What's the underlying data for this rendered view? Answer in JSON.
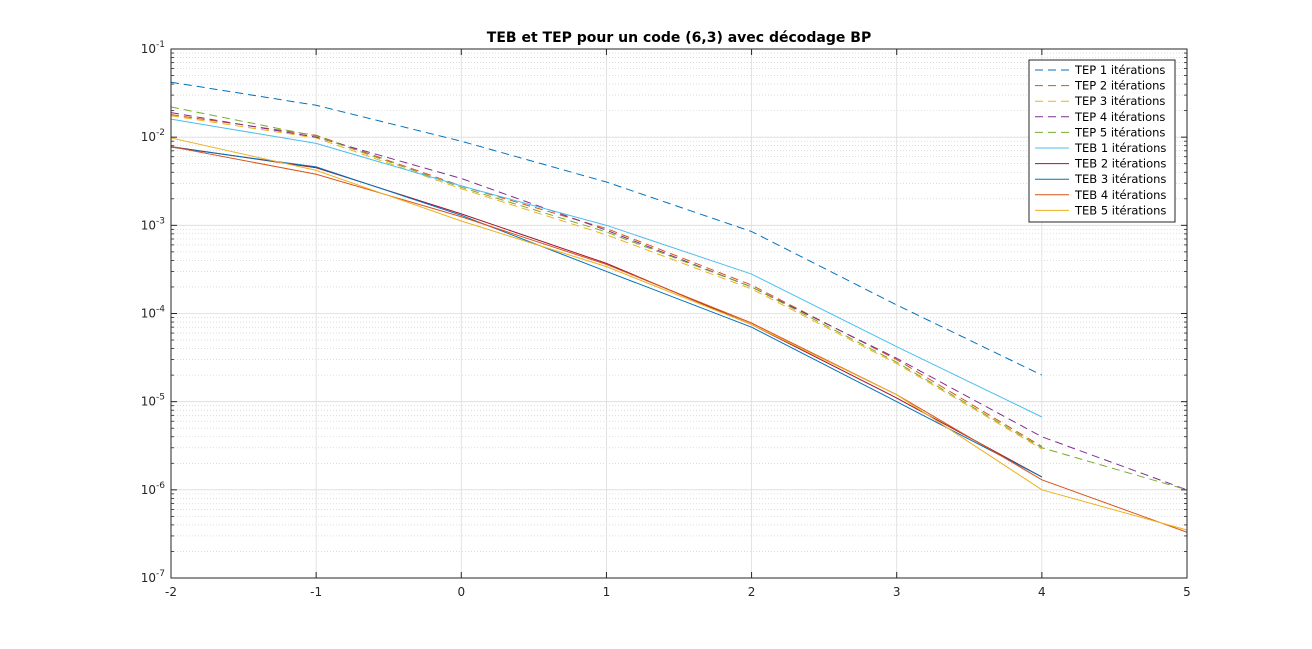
{
  "chart_data": {
    "type": "line",
    "title": "TEB et TEP pour un code (6,3) avec décodage BP",
    "xlabel": "",
    "ylabel": "",
    "xlim": [
      -2,
      5
    ],
    "ylim": [
      1e-07,
      0.1
    ],
    "yscale": "log",
    "grid": true,
    "minor_grid": true,
    "legend_position": "top-right",
    "x_ticks": [
      -2,
      -1,
      0,
      1,
      2,
      3,
      4,
      5
    ],
    "y_tick_labels": [
      {
        "base": "10",
        "exp": "-1"
      },
      {
        "base": "10",
        "exp": "-2"
      },
      {
        "base": "10",
        "exp": "-3"
      },
      {
        "base": "10",
        "exp": "-4"
      },
      {
        "base": "10",
        "exp": "-5"
      },
      {
        "base": "10",
        "exp": "-6"
      },
      {
        "base": "10",
        "exp": "-7"
      }
    ],
    "series": [
      {
        "name": "TEP 1 itérations",
        "color": "#0072BD",
        "dash": true,
        "x": [
          -2,
          -1,
          0,
          1,
          2,
          3,
          4
        ],
        "y": [
          0.042,
          0.023,
          0.009,
          0.0031,
          0.00085,
          0.000125,
          2e-05
        ]
      },
      {
        "name": "TEP 2 itérations",
        "color": "#D95319",
        "dash": true,
        "x": [
          -2,
          -1,
          0,
          1,
          2,
          3,
          4
        ],
        "y": [
          0.018,
          0.0105,
          0.0028,
          0.00092,
          0.00021,
          3e-05,
          3.1e-06
        ]
      },
      {
        "name": "TEP 3 itérations",
        "color": "#EDB120",
        "dash": true,
        "x": [
          -2,
          -1,
          0,
          1,
          2,
          3,
          4
        ],
        "y": [
          0.0175,
          0.0098,
          0.0026,
          0.00078,
          0.00019,
          2.7e-05,
          2.9e-06
        ]
      },
      {
        "name": "TEP 4 itérations",
        "color": "#7E2F8E",
        "dash": true,
        "x": [
          -2,
          -1,
          0,
          1,
          2,
          3,
          4,
          5
        ],
        "y": [
          0.019,
          0.01,
          0.0034,
          0.00088,
          0.0002,
          3.1e-05,
          4e-06,
          1e-06
        ]
      },
      {
        "name": "TEP 5 itérations",
        "color": "#77AC30",
        "dash": true,
        "x": [
          -2,
          -1,
          0,
          1,
          2,
          3,
          4,
          5
        ],
        "y": [
          0.022,
          0.0103,
          0.0027,
          0.00084,
          0.0002,
          2.8e-05,
          3e-06,
          1e-06
        ]
      },
      {
        "name": "TEB 1 itérations",
        "color": "#4DBEEE",
        "dash": false,
        "x": [
          -2,
          -1,
          0,
          1,
          2,
          3,
          4
        ],
        "y": [
          0.016,
          0.0085,
          0.0028,
          0.001,
          0.00028,
          4.2e-05,
          6.7e-06
        ]
      },
      {
        "name": "TEB 2 itérations",
        "color": "#A2142F",
        "dash": false,
        "x": [
          -2,
          -1,
          0,
          1,
          2,
          3,
          4
        ],
        "y": [
          0.0078,
          0.0045,
          0.00135,
          0.00037,
          7.5e-05,
          1.1e-05,
          1.4e-06
        ]
      },
      {
        "name": "TEB 3 itérations",
        "color": "#0072BD",
        "dash": false,
        "x": [
          -2,
          -1,
          0,
          1,
          2,
          3,
          4
        ],
        "y": [
          0.0077,
          0.0046,
          0.0013,
          0.0003,
          7e-05,
          1e-05,
          1.4e-06
        ]
      },
      {
        "name": "TEB 4 itérations",
        "color": "#D95319",
        "dash": false,
        "x": [
          -2,
          -1,
          0,
          1,
          2,
          3,
          4,
          5
        ],
        "y": [
          0.0078,
          0.0038,
          0.00125,
          0.00036,
          7.8e-05,
          1.2e-05,
          1.3e-06,
          3.3e-07
        ]
      },
      {
        "name": "TEB 5 itérations",
        "color": "#EDB120",
        "dash": false,
        "x": [
          -2,
          -1,
          0,
          1,
          2,
          3,
          4,
          5
        ],
        "y": [
          0.0098,
          0.0042,
          0.00112,
          0.00034,
          7.5e-05,
          1.2e-05,
          1e-06,
          3.5e-07
        ]
      }
    ]
  }
}
